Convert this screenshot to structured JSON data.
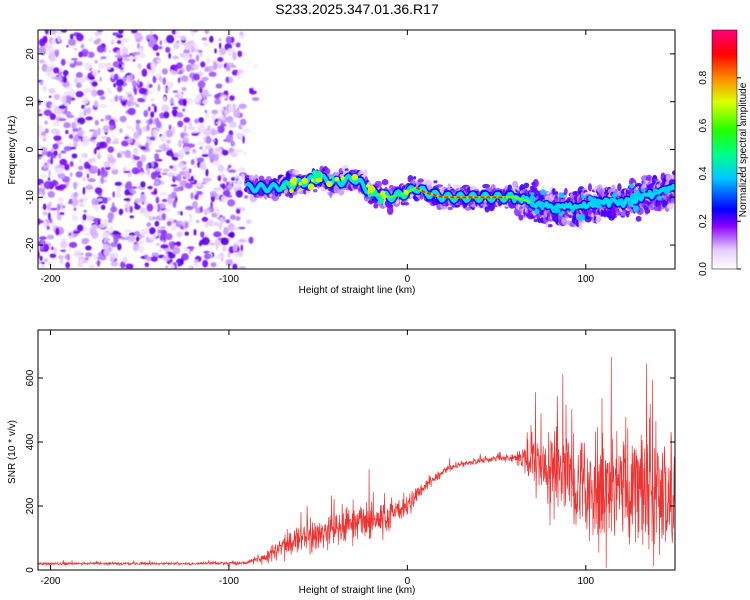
{
  "title": "S233.2025.347.01.36.R17",
  "colors": {
    "snr_line": "#ee3333",
    "axes": "#000000",
    "background": "#ffffff"
  },
  "chart_data": [
    {
      "type": "heatmap",
      "name": "spectrogram",
      "xlabel": "Height of straight line (km)",
      "ylabel": "Frequency (Hz)",
      "xlim": [
        -207,
        150
      ],
      "ylim": [
        -25,
        25
      ],
      "xticks": [
        -200,
        -100,
        0,
        100
      ],
      "xtick_labels": [
        "-200",
        "-100",
        "0",
        "100"
      ],
      "yticks": [
        -20,
        -10,
        0,
        10,
        20
      ],
      "ytick_labels": [
        "-20",
        "-10",
        "0",
        "10",
        "20"
      ],
      "noise_region_x": [
        -207,
        -92
      ],
      "signal_track": {
        "x": [
          -90,
          -75,
          -60,
          -50,
          -40,
          -30,
          -20,
          -10,
          0,
          5,
          10,
          20,
          30,
          40,
          50,
          60,
          70,
          80,
          90,
          100,
          110,
          120,
          130,
          140,
          150
        ],
        "y": [
          -8,
          -8,
          -7,
          -6,
          -7,
          -6,
          -9,
          -10,
          -9,
          -8,
          -9,
          -10,
          -10,
          -10,
          -10,
          -10,
          -11,
          -12,
          -12,
          -12,
          -11,
          -11,
          -10,
          -9,
          -8
        ]
      },
      "colorbar": {
        "label": "Normalized spectral amplitude",
        "range": [
          0.0,
          1.0
        ],
        "ticks": [
          0.0,
          0.2,
          0.4,
          0.6,
          0.8
        ],
        "tick_labels": [
          "0.0",
          "0.2",
          "0.4",
          "0.6",
          "0.8"
        ]
      }
    },
    {
      "type": "line",
      "name": "snr",
      "xlabel": "Height of straight line (km)",
      "ylabel": "SNR (10 * v/v)",
      "xlim": [
        -207,
        150
      ],
      "ylim": [
        0,
        750
      ],
      "xticks": [
        -200,
        -100,
        0,
        100
      ],
      "xtick_labels": [
        "-200",
        "-100",
        "0",
        "100"
      ],
      "yticks": [
        0,
        200,
        400,
        600
      ],
      "ytick_labels": [
        "0",
        "200",
        "400",
        "600"
      ],
      "series": [
        {
          "name": "SNR",
          "x": [
            -207,
            -180,
            -150,
            -120,
            -90,
            -80,
            -70,
            -60,
            -50,
            -40,
            -30,
            -20,
            -10,
            0,
            10,
            20,
            30,
            40,
            50,
            60,
            70,
            80,
            90,
            100,
            110,
            120,
            130,
            140,
            150
          ],
          "mean": [
            20,
            20,
            20,
            20,
            22,
            40,
            70,
            100,
            110,
            130,
            150,
            160,
            170,
            200,
            260,
            310,
            330,
            340,
            350,
            350,
            340,
            320,
            310,
            290,
            280,
            270,
            270,
            260,
            260
          ],
          "spread": [
            6,
            6,
            6,
            6,
            8,
            30,
            50,
            60,
            70,
            80,
            90,
            90,
            80,
            50,
            30,
            20,
            15,
            15,
            15,
            20,
            120,
            200,
            250,
            280,
            300,
            300,
            300,
            300,
            280
          ]
        }
      ]
    }
  ]
}
